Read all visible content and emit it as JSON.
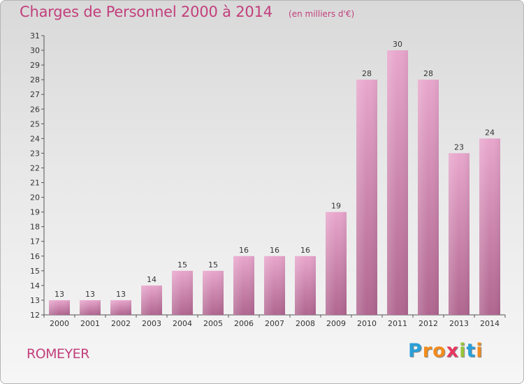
{
  "title": "Charges de Personnel 2000 à 2014",
  "subtitle": "(en milliers d'€)",
  "commune": "ROMEYER",
  "logo": {
    "text": "Proxiti",
    "colors": [
      "#2a9fd8",
      "#f28c1e",
      "#f28c1e",
      "#e8365f",
      "#9ac43c",
      "#2a9fd8",
      "#f28c1e"
    ]
  },
  "colors": {
    "bar_top": "#e8a6cc",
    "bar_bottom": "#b06690",
    "accent": "#c23f7c"
  },
  "chart_data": {
    "type": "bar",
    "categories": [
      "2000",
      "2001",
      "2002",
      "2003",
      "2004",
      "2005",
      "2006",
      "2007",
      "2008",
      "2009",
      "2010",
      "2011",
      "2012",
      "2013",
      "2014"
    ],
    "values": [
      13,
      13,
      13,
      14,
      15,
      15,
      16,
      16,
      16,
      19,
      28,
      30,
      28,
      23,
      24
    ],
    "title": "Charges de Personnel 2000 à 2014",
    "subtitle": "(en milliers d'€)",
    "ylim": [
      12,
      31
    ],
    "yticks": [
      12,
      13,
      14,
      15,
      16,
      17,
      18,
      19,
      20,
      21,
      22,
      23,
      24,
      25,
      26,
      27,
      28,
      29,
      30,
      31
    ],
    "grid": false
  }
}
